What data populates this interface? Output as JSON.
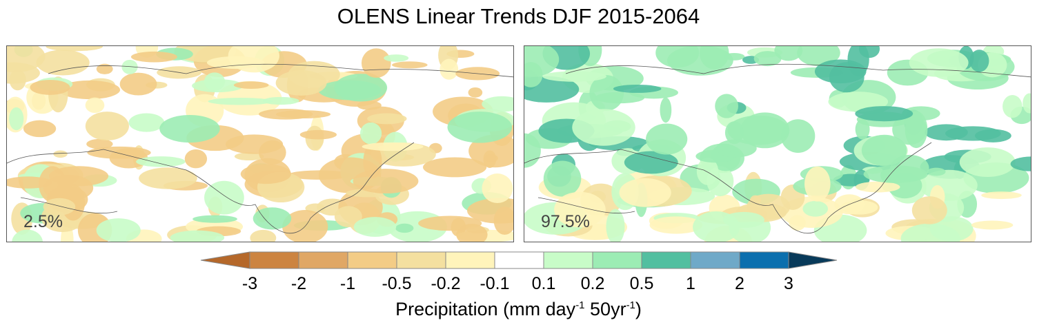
{
  "title": "OLENS Linear Trends DJF 2015-2064",
  "panels": [
    {
      "label": "2.5%"
    },
    {
      "label": "97.5%"
    }
  ],
  "colorbar": {
    "ticks": [
      "-3",
      "-2",
      "-1",
      "-0.5",
      "-0.2",
      "-0.1",
      "0.1",
      "0.2",
      "0.5",
      "1",
      "2",
      "3"
    ],
    "colors": [
      "#b5682a",
      "#cc8441",
      "#e0a765",
      "#f3cc86",
      "#f4e0a0",
      "#fff4bb",
      "#ffffff",
      "#c8fcc8",
      "#9cecb4",
      "#52bfa0",
      "#6fa9c8",
      "#0b6fae",
      "#083a5a"
    ],
    "label_main": "Precipitation (mm day",
    "label_exp1": "-1",
    "label_mid": " 50yr",
    "label_exp2": "-1",
    "label_end": ")"
  }
}
